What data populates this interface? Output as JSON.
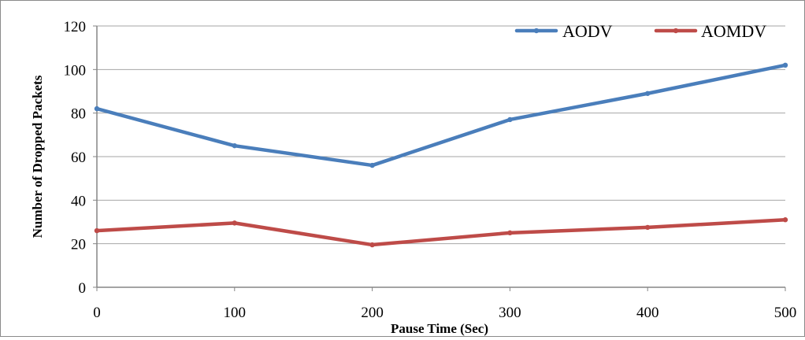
{
  "chart_data": {
    "type": "line",
    "x": [
      0,
      100,
      200,
      300,
      400,
      500
    ],
    "series": [
      {
        "name": "AODV",
        "values": [
          82,
          65,
          56,
          77,
          89,
          102
        ],
        "color": "#4a7ebb"
      },
      {
        "name": "AOMDV",
        "values": [
          26,
          29.5,
          19.5,
          25,
          27.5,
          31
        ],
        "color": "#be4b48"
      }
    ],
    "xlabel": "Pause Time (Sec)",
    "ylabel": "Number of Dropped Packets",
    "xlim": [
      0,
      500
    ],
    "ylim": [
      0,
      120
    ],
    "x_ticks": [
      "0",
      "100",
      "200",
      "300",
      "400",
      "500"
    ],
    "y_ticks": [
      "0",
      "20",
      "40",
      "60",
      "80",
      "100",
      "120"
    ],
    "grid": "horizontal",
    "gridline_color": "#a6a6a6",
    "legend_placement": "top-right"
  }
}
